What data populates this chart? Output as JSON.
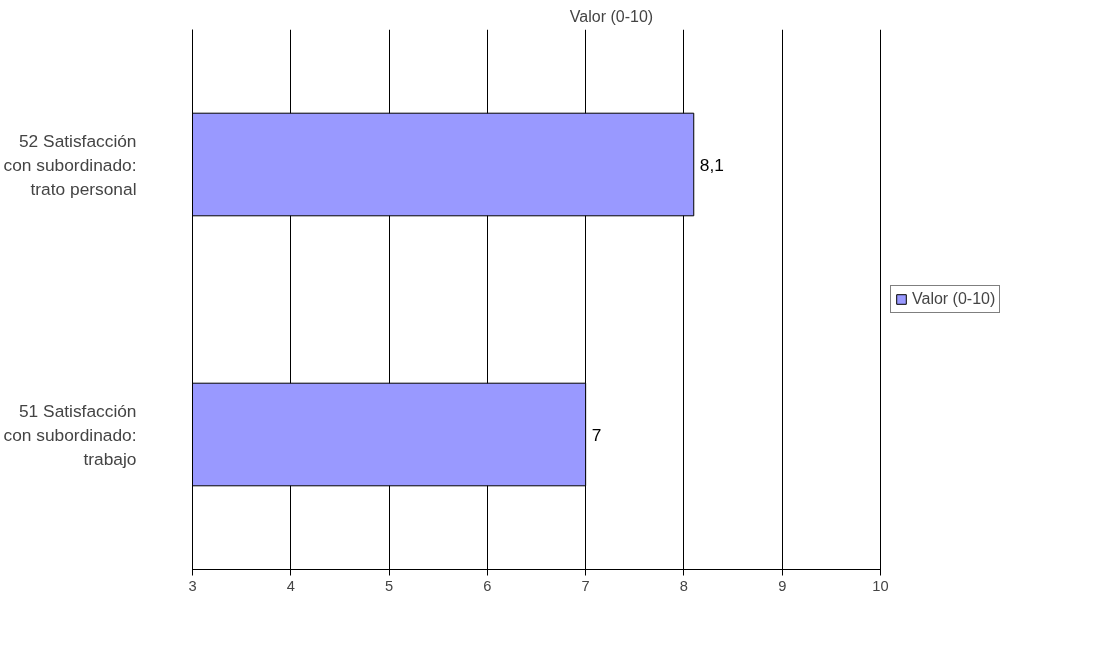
{
  "chart_data": {
    "type": "bar",
    "orientation": "horizontal",
    "title": "Valor (0-10)",
    "categories": [
      "52 Satisfacción con subordinado: trato personal",
      "51 Satisfacción con subordinado: trabajo"
    ],
    "series": [
      {
        "name": "Valor (0-10)",
        "color": "#9999ff",
        "values": [
          8.1,
          7
        ],
        "value_labels": [
          "8,1",
          "7"
        ]
      }
    ],
    "xlim": [
      3,
      10
    ],
    "xticks": [
      3,
      4,
      5,
      6,
      7,
      8,
      9,
      10
    ],
    "grid": "x",
    "legend": "right"
  }
}
